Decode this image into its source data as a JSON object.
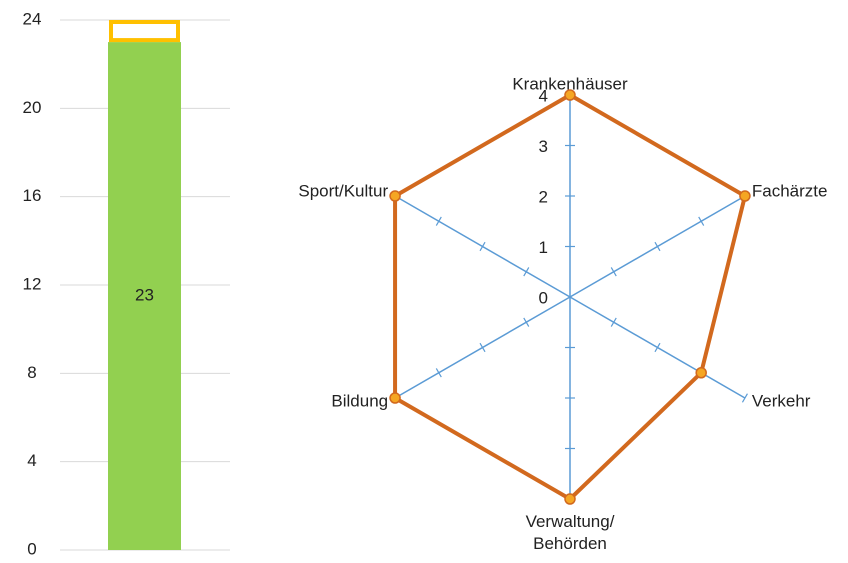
{
  "chart_data": [
    {
      "type": "stacked-bar",
      "series": [
        {
          "color": "#92d050",
          "values": [
            23
          ]
        },
        {
          "color": "#ffc000",
          "outline": true,
          "values": [
            1
          ]
        }
      ],
      "ylim": [
        0,
        24
      ],
      "yticks": [
        0,
        4,
        8,
        12,
        16,
        20,
        24
      ],
      "grid": true
    },
    {
      "type": "radar",
      "categories": [
        "Krankenhäuser",
        "Fachärzte",
        "Verkehr",
        "Verwaltung/\nBehörden",
        "Bildung",
        "Sport/Kultur"
      ],
      "series": [
        {
          "color": "#d2691e",
          "marker_color": "#f5a623",
          "values": [
            4,
            4,
            3,
            4,
            4,
            4
          ]
        }
      ],
      "rlim": [
        0,
        4
      ],
      "rticks": [
        0,
        1,
        2,
        3,
        4
      ],
      "axis_color": "#5b9bd5"
    }
  ]
}
